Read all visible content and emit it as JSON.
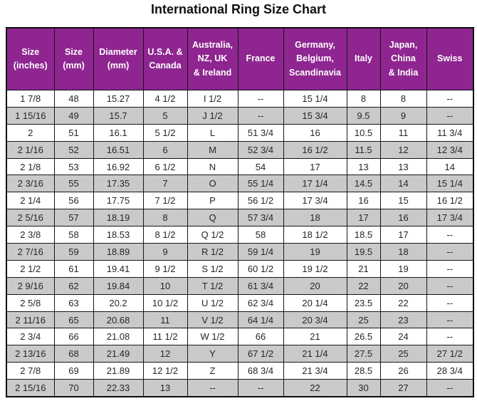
{
  "title": "International Ring Size Chart",
  "colors": {
    "header_bg": "#8e2590",
    "header_text": "#ffffff",
    "row_alt_bg": "#c9c9c9",
    "border": "#161616",
    "title_color": "#111111"
  },
  "chart_data": {
    "type": "table",
    "title": "International Ring Size Chart",
    "columns": [
      "Size\n(inches)",
      "Size\n(mm)",
      "Diameter\n(mm)",
      "U.S.A. &\nCanada",
      "Australia,\nNZ, UK\n& Ireland",
      "France",
      "Germany,\nBelgium,\nScandinavia",
      "Italy",
      "Japan,\nChina\n& India",
      "Swiss"
    ],
    "rows": [
      [
        "1 7/8",
        "48",
        "15.27",
        "4 1/2",
        "I 1/2",
        "--",
        "15 1/4",
        "8",
        "8",
        "--"
      ],
      [
        "1 15/16",
        "49",
        "15.7",
        "5",
        "J 1/2",
        "--",
        "15 3/4",
        "9.5",
        "9",
        "--"
      ],
      [
        "2",
        "51",
        "16.1",
        "5 1/2",
        "L",
        "51 3/4",
        "16",
        "10.5",
        "11",
        "11 3/4"
      ],
      [
        "2 1/16",
        "52",
        "16.51",
        "6",
        "M",
        "52 3/4",
        "16 1/2",
        "11.5",
        "12",
        "12 3/4"
      ],
      [
        "2 1/8",
        "53",
        "16.92",
        "6 1/2",
        "N",
        "54",
        "17",
        "13",
        "13",
        "14"
      ],
      [
        "2 3/16",
        "55",
        "17.35",
        "7",
        "O",
        "55 1/4",
        "17 1/4",
        "14.5",
        "14",
        "15 1/4"
      ],
      [
        "2 1/4",
        "56",
        "17.75",
        "7 1/2",
        "P",
        "56 1/2",
        "17 3/4",
        "16",
        "15",
        "16 1/2"
      ],
      [
        "2 5/16",
        "57",
        "18.19",
        "8",
        "Q",
        "57 3/4",
        "18",
        "17",
        "16",
        "17 3/4"
      ],
      [
        "2 3/8",
        "58",
        "18.53",
        "8 1/2",
        "Q 1/2",
        "58",
        "18 1/2",
        "18.5",
        "17",
        "--"
      ],
      [
        "2 7/16",
        "59",
        "18.89",
        "9",
        "R 1/2",
        "59 1/4",
        "19",
        "19.5",
        "18",
        "--"
      ],
      [
        "2 1/2",
        "61",
        "19.41",
        "9 1/2",
        "S 1/2",
        "60 1/2",
        "19 1/2",
        "21",
        "19",
        "--"
      ],
      [
        "2 9/16",
        "62",
        "19.84",
        "10",
        "T 1/2",
        "61 3/4",
        "20",
        "22",
        "20",
        "--"
      ],
      [
        "2 5/8",
        "63",
        "20.2",
        "10 1/2",
        "U 1/2",
        "62 3/4",
        "20 1/4",
        "23.5",
        "22",
        "--"
      ],
      [
        "2 11/16",
        "65",
        "20.68",
        "11",
        "V 1/2",
        "64 1/4",
        "20 3/4",
        "25",
        "23",
        "--"
      ],
      [
        "2 3/4",
        "66",
        "21.08",
        "11 1/2",
        "W 1/2",
        "66",
        "21",
        "26.5",
        "24",
        "--"
      ],
      [
        "2 13/16",
        "68",
        "21.49",
        "12",
        "Y",
        "67 1/2",
        "21 1/4",
        "27.5",
        "25",
        "27 1/2"
      ],
      [
        "2 7/8",
        "69",
        "21.89",
        "12 1/2",
        "Z",
        "68 3/4",
        "21 3/4",
        "28.5",
        "26",
        "28 3/4"
      ],
      [
        "2 15/16",
        "70",
        "22.33",
        "13",
        "--",
        "--",
        "22",
        "30",
        "27",
        "--"
      ]
    ]
  }
}
